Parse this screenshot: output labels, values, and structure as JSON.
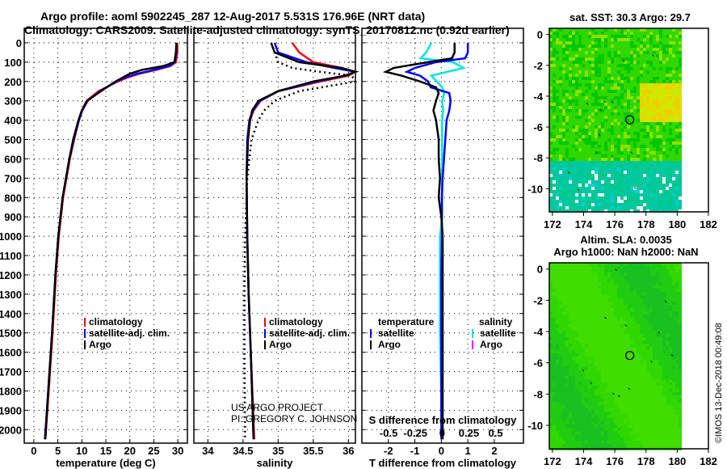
{
  "title": {
    "line1": "Argo profile: aoml 5902245_287 12-Aug-2017 5.531S 176.96E (NRT data)",
    "line2": "Climatology: CARS2009. Satellite-adjusted climatology: synTS_20170812.nc (0.92d earlier)"
  },
  "credits": {
    "project": "US ARGO PROJECT",
    "pi": "PI: GREGORY C. JOHNSON",
    "imos": "©IMOS 13-Dec-2018 00:49:08"
  },
  "colors": {
    "climatology": "#ff0000",
    "satellite": "#0000ff",
    "argo": "#000000",
    "sal_sat": "#00e5e5",
    "sal_argo": "#ff00ff"
  },
  "chart_data": [
    {
      "type": "line",
      "xlabel": "temperature (deg C)",
      "xlim": [
        -2,
        32
      ],
      "ylim": [
        2070,
        -75
      ],
      "xticks": [
        0,
        5,
        10,
        15,
        20,
        25,
        30
      ],
      "yticks": [
        0,
        100,
        200,
        300,
        400,
        500,
        600,
        700,
        800,
        900,
        1000,
        1100,
        1200,
        1300,
        1400,
        1500,
        1600,
        1700,
        1800,
        1900,
        2000
      ],
      "legend": [
        "climatology",
        "satellite-adj. clim.",
        "Argo"
      ],
      "depth": [
        0,
        50,
        100,
        120,
        140,
        160,
        180,
        200,
        250,
        300,
        350,
        400,
        500,
        600,
        700,
        800,
        1000,
        1200,
        1500,
        1800,
        2050
      ],
      "series": [
        {
          "name": "climatology",
          "values": [
            29.9,
            29.9,
            29.6,
            28.5,
            25.5,
            22,
            19.5,
            17.5,
            13.5,
            11,
            10,
            9.4,
            8.4,
            7.5,
            6.8,
            6.1,
            5.2,
            4.6,
            3.9,
            3.1,
            2.4
          ]
        },
        {
          "name": "satellite-adj. clim.",
          "values": [
            29.7,
            29.7,
            29.4,
            28.2,
            25,
            21.5,
            19,
            17.2,
            13.8,
            11.2,
            10.1,
            9.4,
            8.3,
            7.4,
            6.7,
            6.0,
            5.1,
            4.5,
            3.8,
            3.0,
            2.3
          ]
        },
        {
          "name": "Argo",
          "values": [
            29.7,
            29.6,
            29.3,
            27,
            22.5,
            20,
            18.5,
            17,
            14,
            11.1,
            10,
            9.3,
            8.2,
            7.4,
            6.7,
            6.0,
            5.1,
            4.5,
            3.8,
            3.0,
            2.4
          ]
        }
      ]
    },
    {
      "type": "line",
      "xlabel": "salinity",
      "xlim": [
        33.8,
        36.1
      ],
      "ylim": [
        2070,
        -75
      ],
      "xticks": [
        34,
        34.5,
        35,
        35.5,
        36
      ],
      "legend": [
        "climatology",
        "satellite-adj. clim.",
        "Argo"
      ],
      "depth": [
        0,
        50,
        100,
        130,
        150,
        170,
        200,
        250,
        300,
        350,
        400,
        500,
        700,
        1000,
        1300,
        1600,
        2050
      ],
      "series": [
        {
          "name": "climatology",
          "values": [
            35.2,
            35.3,
            35.5,
            35.9,
            36.1,
            36.0,
            35.6,
            35.0,
            34.75,
            34.65,
            34.6,
            34.57,
            34.55,
            34.56,
            34.58,
            34.61,
            34.66
          ]
        },
        {
          "name": "satellite-adj. clim.",
          "values": [
            34.95,
            35.0,
            35.4,
            35.8,
            36.1,
            35.95,
            35.55,
            35.0,
            34.74,
            34.64,
            34.59,
            34.56,
            34.55,
            34.56,
            34.58,
            34.61,
            34.65
          ]
        },
        {
          "name": "Argo",
          "values": [
            34.9,
            34.95,
            35.3,
            35.9,
            36.1,
            35.95,
            35.5,
            35.0,
            34.72,
            34.63,
            34.6,
            34.57,
            34.55,
            34.56,
            34.58,
            34.61,
            34.65
          ]
        },
        {
          "name": "climatology (dotted)",
          "values": [
            34.9,
            34.95,
            35.0,
            35.2,
            35.6,
            36.05,
            36.1,
            35.3,
            34.95,
            34.8,
            34.72,
            34.62,
            34.56,
            34.53,
            34.52,
            34.52,
            34.53
          ]
        }
      ]
    },
    {
      "type": "line",
      "xlabel": "T difference from climatology",
      "x2label": "S difference from climatology",
      "xlim": [
        -3.0,
        3.1
      ],
      "x2lim": [
        -0.75,
        0.76
      ],
      "ylim": [
        2070,
        -75
      ],
      "xticks": [
        -2,
        -1,
        0,
        1,
        2
      ],
      "x2ticks": [
        -0.5,
        -0.25,
        0,
        0.25,
        0.5
      ],
      "legend": {
        "temperature_title": "temperature",
        "salinity_title": "salinity",
        "items": [
          "satellite",
          "Argo",
          "satellite",
          "Argo"
        ]
      },
      "depth": [
        0,
        50,
        80,
        100,
        130,
        150,
        170,
        200,
        230,
        260,
        300,
        350,
        400,
        500,
        600,
        700,
        800,
        900,
        1000,
        1200,
        1500,
        2050
      ],
      "series": [
        {
          "name": "T satellite",
          "values": [
            1.0,
            1.0,
            0.9,
            -0.2,
            -1.0,
            -1.3,
            -0.8,
            -0.5,
            -0.4,
            0.3,
            0.35,
            0.3,
            0.2,
            0.15,
            0.1,
            0.05,
            0.02,
            0.02,
            0.02,
            0.0,
            0.0,
            0.0
          ]
        },
        {
          "name": "T Argo",
          "values": [
            0.5,
            0.5,
            0.4,
            -0.5,
            -1.8,
            -2.1,
            -1.5,
            -0.8,
            -0.2,
            -0.1,
            -0.2,
            -0.3,
            -0.2,
            -0.1,
            -0.1,
            -0.05,
            -0.1,
            0.0,
            0.05,
            0.05,
            0.05,
            0.05
          ]
        },
        {
          "name": "S satellite",
          "values": [
            -0.1,
            -0.15,
            -0.2,
            0.1,
            0.2,
            0.05,
            -0.1,
            -0.05,
            0.0,
            0.02,
            0.0,
            0.01,
            0.0,
            0.0,
            0.0,
            0.0,
            0.0,
            0.0,
            -0.02,
            -0.02,
            -0.02,
            0.0
          ]
        }
      ]
    },
    {
      "type": "heatmap",
      "title": "sat. SST: 30.3 Argo: 29.7",
      "xlim": [
        171.8,
        182.0
      ],
      "ylim": [
        -11.5,
        0.4
      ],
      "xticks": [
        172,
        174,
        176,
        178,
        180,
        182
      ],
      "yticks": [
        0,
        -2,
        -4,
        -6,
        -8,
        -10
      ],
      "marker": {
        "lon": 176.96,
        "lat": -5.531
      }
    },
    {
      "type": "heatmap",
      "title": "Altim. SLA: 0.0035",
      "subtitle": "Argo h1000: NaN h2000: NaN",
      "xlim": [
        171.8,
        182.0
      ],
      "ylim": [
        -11.5,
        0.4
      ],
      "xticks": [
        172,
        174,
        176,
        178,
        180,
        182
      ],
      "yticks": [
        0,
        -2,
        -4,
        -6,
        -8,
        -10
      ],
      "marker": {
        "lon": 176.96,
        "lat": -5.531
      }
    }
  ]
}
